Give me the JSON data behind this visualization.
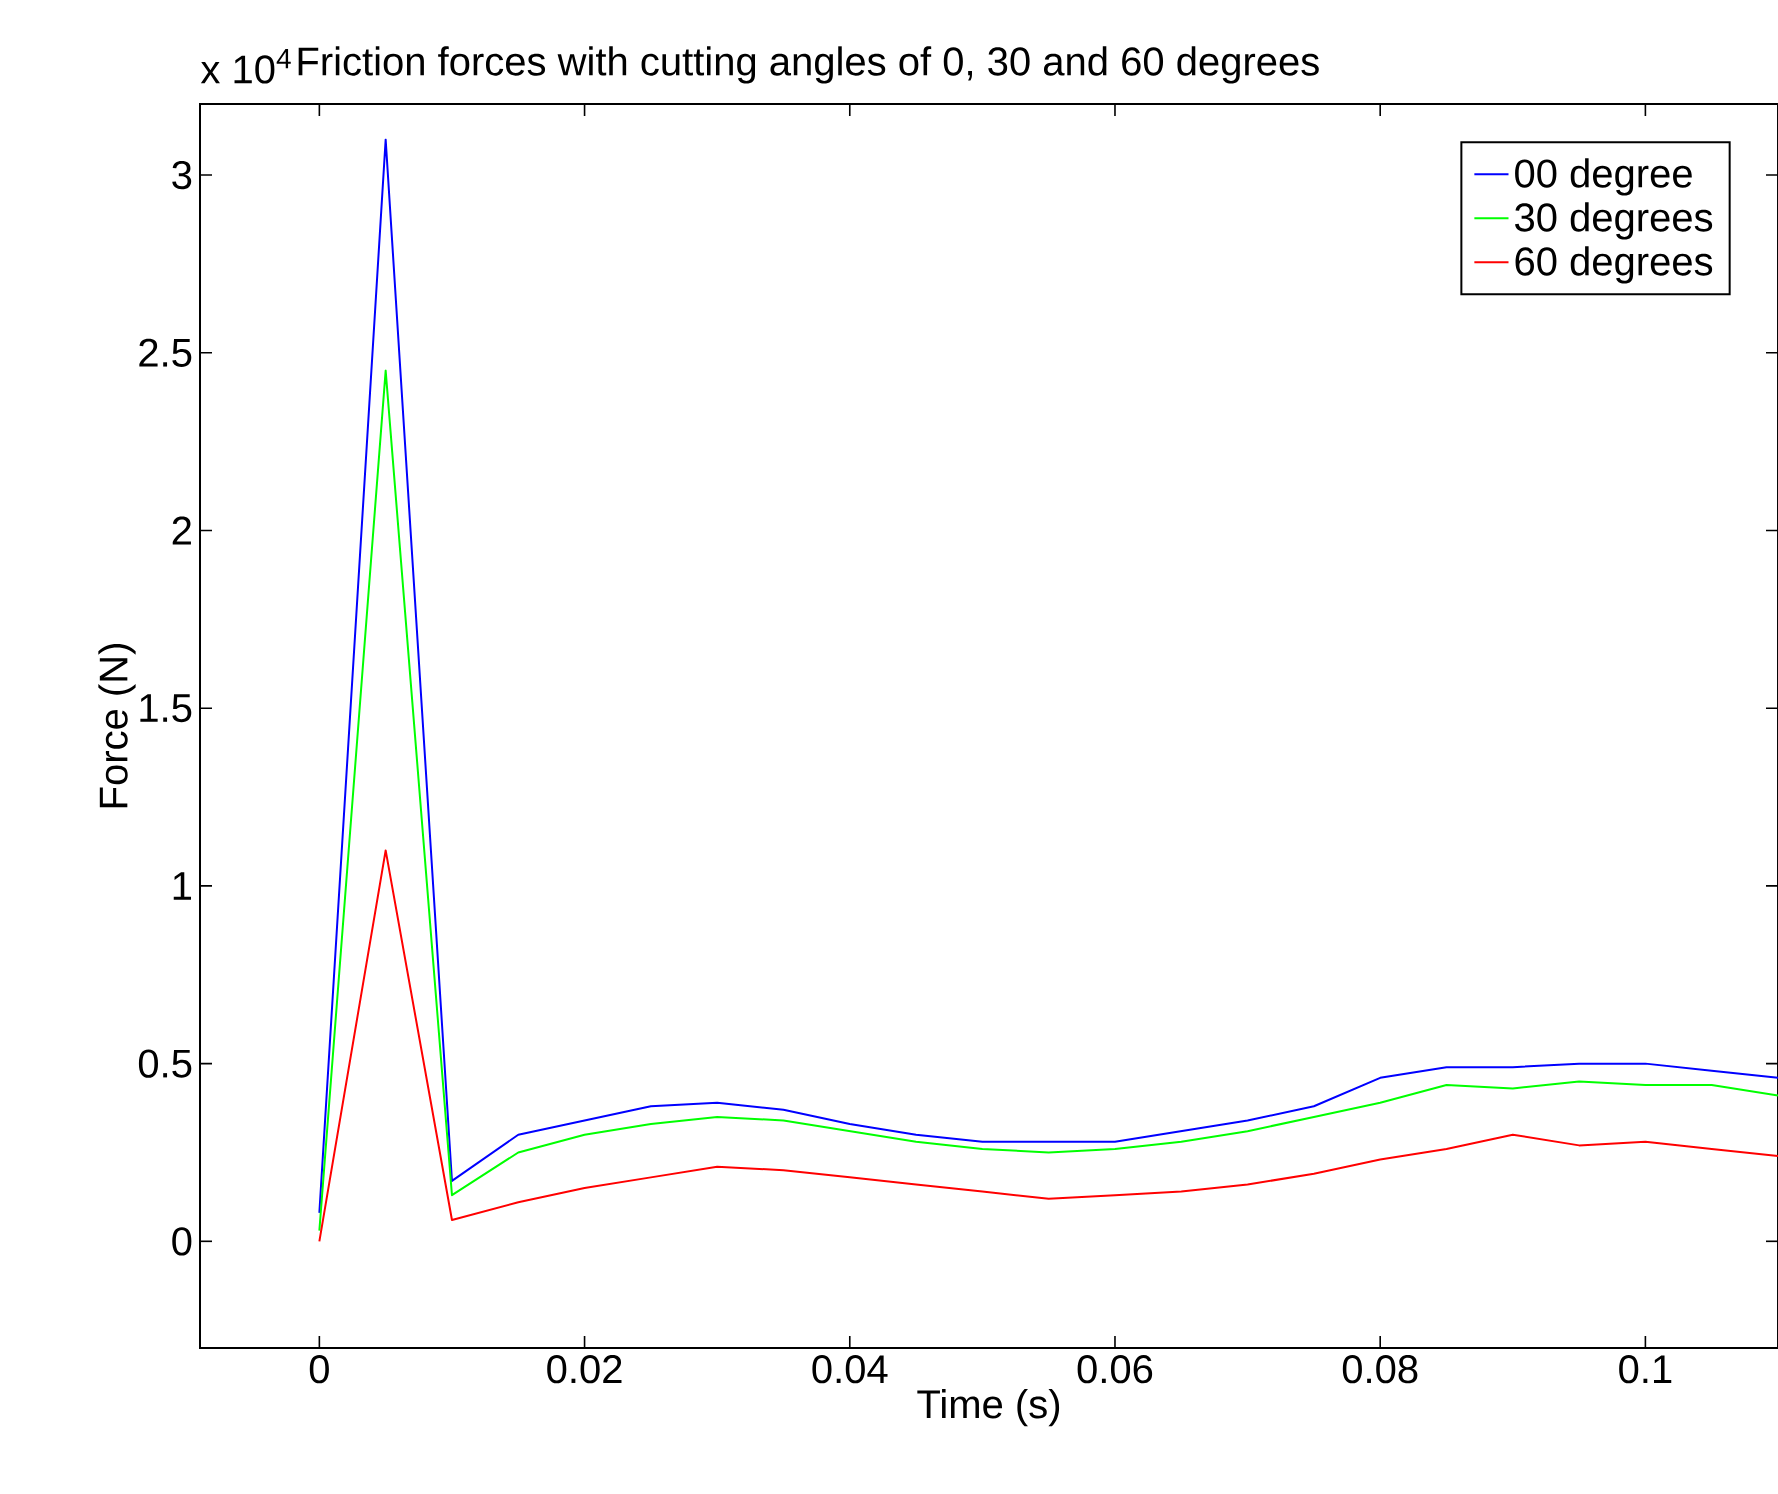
{
  "chart_data": {
    "type": "line",
    "title": "Friction forces with cutting angles of 0, 30 and 60 degrees",
    "xlabel": "Time (s)",
    "ylabel": "Force (N)",
    "annotations": [
      "x 10$^{4}$"
    ],
    "x": [
      0,
      0.005,
      0.01,
      0.015,
      0.02,
      0.025,
      0.03,
      0.035,
      0.04,
      0.045,
      0.05,
      0.055,
      0.06,
      0.065,
      0.07,
      0.075,
      0.08,
      0.085,
      0.09,
      0.095,
      0.1,
      0.105,
      0.11
    ],
    "series": [
      {
        "name": "00 degree",
        "color": "#0000ff",
        "values": [
          0.08,
          3.1,
          0.17,
          0.3,
          0.34,
          0.38,
          0.39,
          0.37,
          0.33,
          0.3,
          0.28,
          0.28,
          0.28,
          0.31,
          0.34,
          0.38,
          0.46,
          0.49,
          0.49,
          0.5,
          0.5,
          0.48,
          0.46
        ]
      },
      {
        "name": "30 degrees",
        "color": "#00ff00",
        "values": [
          0.03,
          2.45,
          0.13,
          0.25,
          0.3,
          0.33,
          0.35,
          0.34,
          0.31,
          0.28,
          0.26,
          0.25,
          0.26,
          0.28,
          0.31,
          0.35,
          0.39,
          0.44,
          0.43,
          0.45,
          0.44,
          0.44,
          0.41
        ]
      },
      {
        "name": "60 degrees",
        "color": "#ff0000",
        "values": [
          0,
          1.1,
          0.06,
          0.11,
          0.15,
          0.18,
          0.21,
          0.2,
          0.18,
          0.16,
          0.14,
          0.12,
          0.13,
          0.14,
          0.16,
          0.19,
          0.23,
          0.26,
          0.3,
          0.27,
          0.28,
          0.26,
          0.24
        ]
      }
    ],
    "xlim": [
      -0.009,
      0.11
    ],
    "ylim": [
      -0.3,
      3.2
    ],
    "xticks": [
      0,
      0.02,
      0.04,
      0.06,
      0.08,
      0.1
    ],
    "yticks": [
      0,
      0.5,
      1,
      1.5,
      2,
      2.5,
      3
    ],
    "legend": "top right",
    "grid": false,
    "marker": "none",
    "line_style": "solid"
  }
}
